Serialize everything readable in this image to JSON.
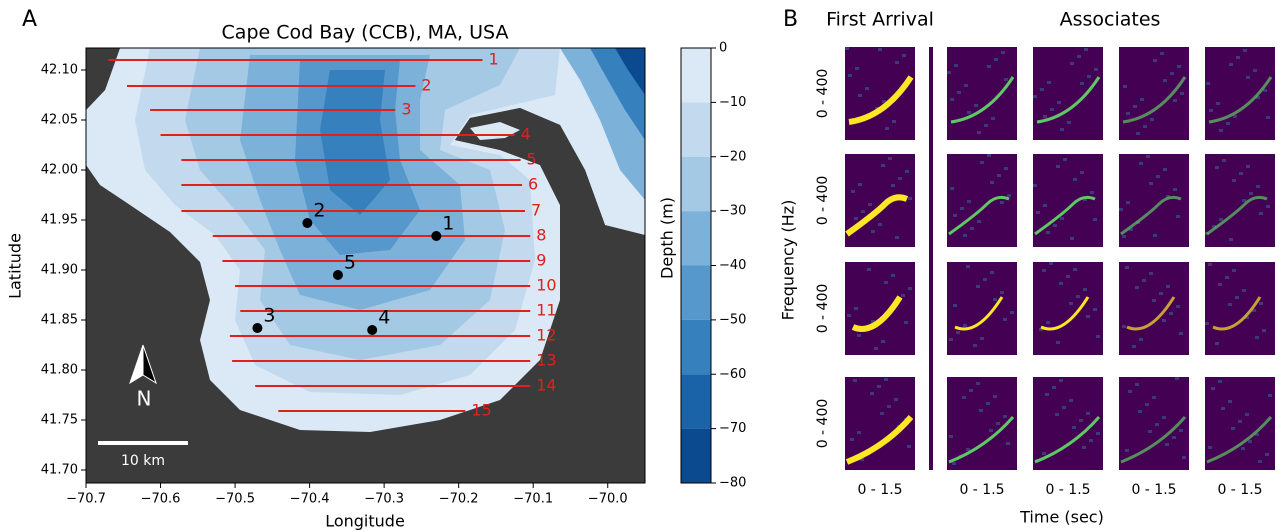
{
  "panel_a": {
    "label": "A",
    "title": "Cape Cod Bay (CCB), MA, USA",
    "xlabel": "Longitude",
    "ylabel": "Latitude",
    "xlim": [
      -70.7,
      -69.95
    ],
    "ylim": [
      41.687,
      42.122
    ],
    "xticks": [
      {
        "value": -70.7,
        "label": "−70.7"
      },
      {
        "value": -70.6,
        "label": "−70.6"
      },
      {
        "value": -70.5,
        "label": "−70.5"
      },
      {
        "value": -70.4,
        "label": "−70.4"
      },
      {
        "value": -70.3,
        "label": "−70.3"
      },
      {
        "value": -70.2,
        "label": "−70.2"
      },
      {
        "value": -70.1,
        "label": "−70.1"
      },
      {
        "value": -70.0,
        "label": "−70.0"
      }
    ],
    "yticks": [
      {
        "value": 41.7,
        "label": "41.70"
      },
      41.75,
      {
        "value": 41.8,
        "label": "41.80"
      },
      41.85,
      {
        "value": 41.9,
        "label": "41.90"
      },
      41.95,
      {
        "value": 42.0,
        "label": "42.00"
      },
      42.05,
      {
        "value": 42.1,
        "label": "42.10"
      }
    ],
    "transect_color": "#e0201b",
    "transects": [
      {
        "label": "1",
        "lat": 42.11,
        "lon": [
          -70.67,
          -70.168
        ]
      },
      {
        "label": "2",
        "lat": 42.084,
        "lon": [
          -70.645,
          -70.258
        ]
      },
      {
        "label": "3",
        "lat": 42.06,
        "lon": [
          -70.614,
          -70.285
        ]
      },
      {
        "label": "4",
        "lat": 42.035,
        "lon": [
          -70.6,
          -70.125
        ]
      },
      {
        "label": "5",
        "lat": 42.01,
        "lon": [
          -70.572,
          -70.117
        ]
      },
      {
        "label": "6",
        "lat": 41.985,
        "lon": [
          -70.572,
          -70.115
        ]
      },
      {
        "label": "7",
        "lat": 41.959,
        "lon": [
          -70.572,
          -70.111
        ]
      },
      {
        "label": "8",
        "lat": 41.934,
        "lon": [
          -70.53,
          -70.104
        ]
      },
      {
        "label": "9",
        "lat": 41.909,
        "lon": [
          -70.517,
          -70.104
        ]
      },
      {
        "label": "10",
        "lat": 41.884,
        "lon": [
          -70.5,
          -70.104
        ]
      },
      {
        "label": "11",
        "lat": 41.859,
        "lon": [
          -70.493,
          -70.104
        ]
      },
      {
        "label": "12",
        "lat": 41.834,
        "lon": [
          -70.507,
          -70.104
        ]
      },
      {
        "label": "13",
        "lat": 41.809,
        "lon": [
          -70.504,
          -70.104
        ]
      },
      {
        "label": "14",
        "lat": 41.784,
        "lon": [
          -70.473,
          -70.104
        ]
      },
      {
        "label": "15",
        "lat": 41.759,
        "lon": [
          -70.442,
          -70.191
        ]
      }
    ],
    "stations": [
      {
        "label": "1",
        "lon": -70.23,
        "lat": 41.934
      },
      {
        "label": "2",
        "lon": -70.403,
        "lat": 41.947
      },
      {
        "label": "3",
        "lon": -70.47,
        "lat": 41.842
      },
      {
        "label": "4",
        "lon": -70.316,
        "lat": 41.84
      },
      {
        "label": "5",
        "lon": -70.362,
        "lat": 41.895
      }
    ],
    "colorbar": {
      "label": "Depth (m)",
      "lim": [
        -80,
        0
      ],
      "ticks": [
        0,
        {
          "value": -10,
          "label": "−10"
        },
        {
          "value": -20,
          "label": "−20"
        },
        {
          "value": -30,
          "label": "−30"
        },
        {
          "value": -40,
          "label": "−40"
        },
        {
          "value": -50,
          "label": "−50"
        },
        {
          "value": -60,
          "label": "−60"
        },
        {
          "value": -70,
          "label": "−70"
        },
        {
          "value": -80,
          "label": "−80"
        }
      ],
      "colors": [
        "#dbe9f6",
        "#c2d9ee",
        "#a4c9e4",
        "#7cb2da",
        "#5698cb",
        "#3680bd",
        "#1b63a8",
        "#0b4a8f"
      ]
    },
    "scale_bar": "10 km",
    "north": "N"
  },
  "panel_b": {
    "label": "B",
    "titles": [
      "First Arrival",
      "Associates"
    ],
    "ylabel": "Frequency (Hz)",
    "xlabel": "Time (sec)",
    "row_labels": [
      "0 - 400",
      "0 - 400",
      "0 - 400",
      "0 - 400"
    ],
    "col_labels": [
      "0 - 1.5",
      "0 - 1.5",
      "0 - 1.5",
      "0 - 1.5",
      "0 - 1.5"
    ]
  }
}
